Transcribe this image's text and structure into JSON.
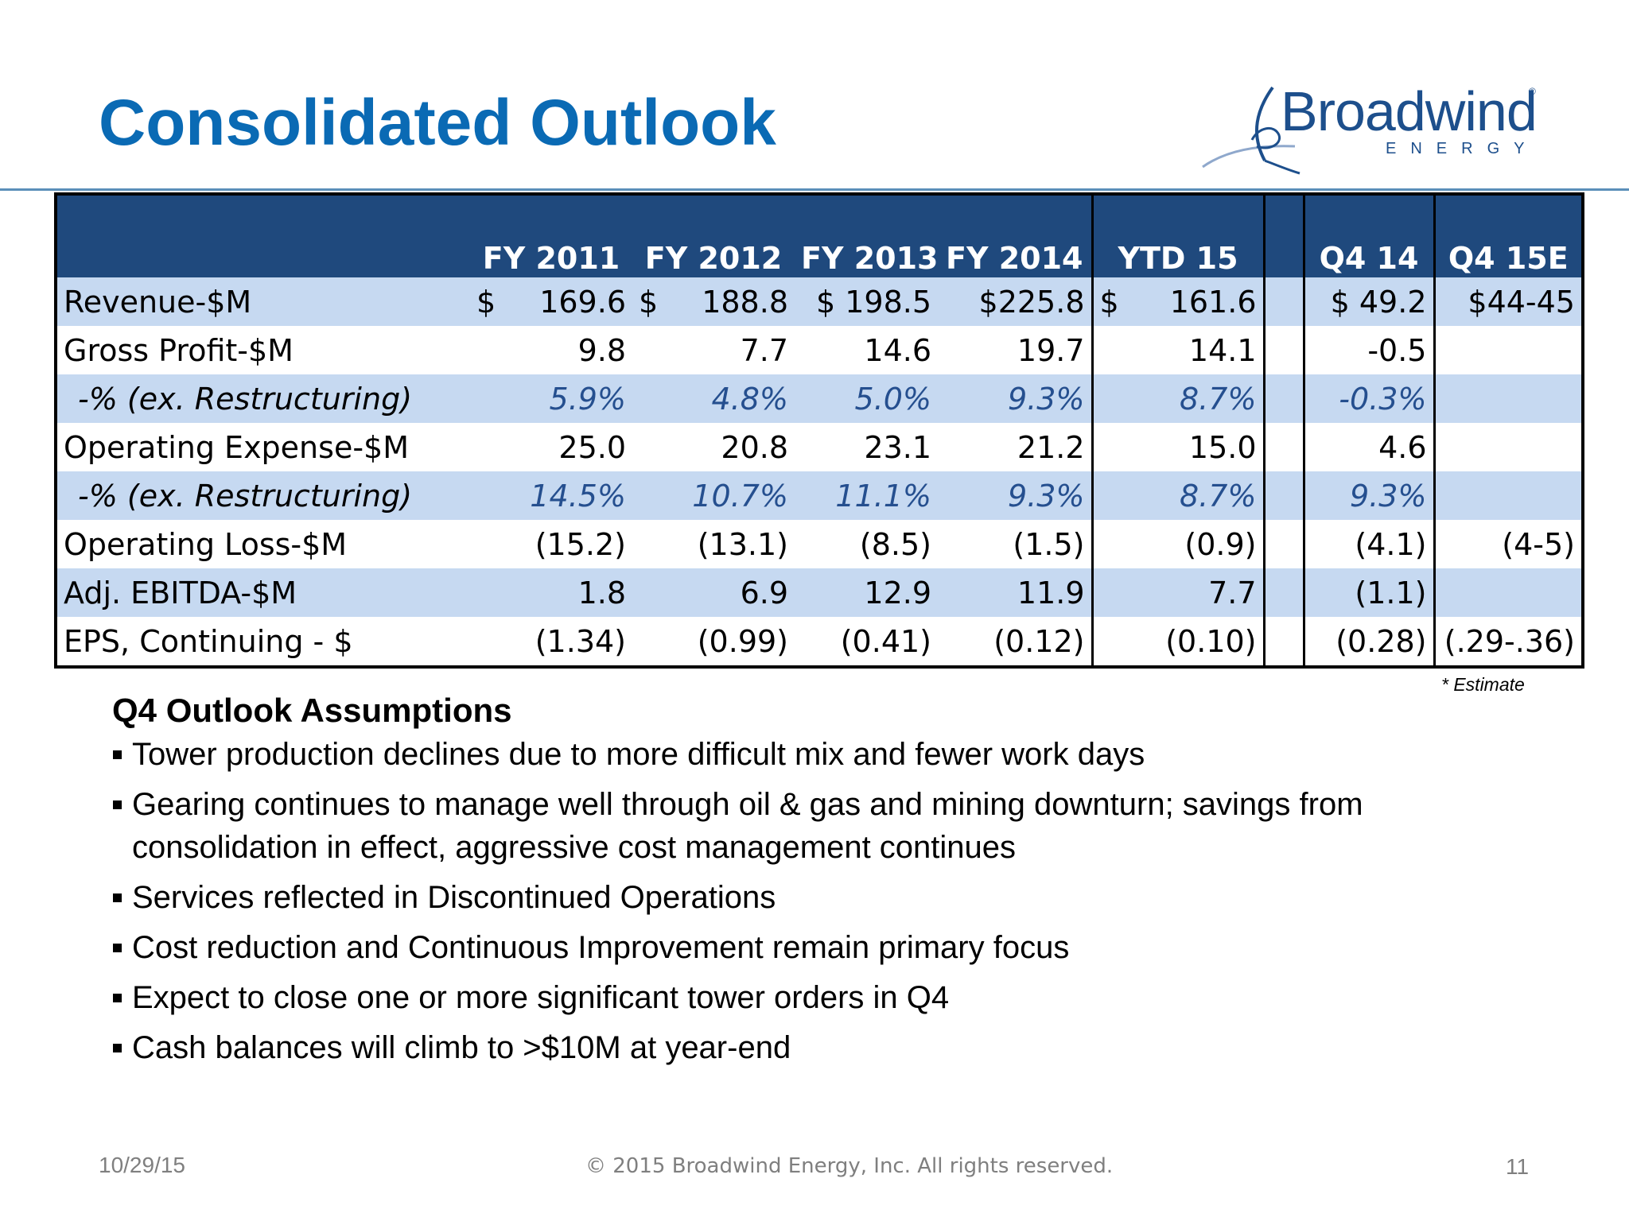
{
  "slide": {
    "title": "Consolidated Outlook",
    "logo": {
      "name": "Broadwind",
      "sub": "ENERGY",
      "reg_mark": "®"
    },
    "estimate_note": "* Estimate"
  },
  "table": {
    "headers": [
      "",
      "FY 2011",
      "FY 2012",
      "FY 2013",
      "FY 2014",
      "YTD 15",
      "",
      "Q4 14",
      "Q4 15E"
    ],
    "rows": [
      {
        "label": "Revenue-$M",
        "cells": [
          {
            "cur": "$",
            "num": "169.6"
          },
          {
            "cur": "$",
            "num": "188.8"
          },
          {
            "cur": "",
            "num": "$ 198.5"
          },
          {
            "cur": "",
            "num": "$225.8"
          },
          {
            "cur": "$",
            "num": "161.6"
          },
          {
            "cur": "",
            "num": ""
          },
          {
            "cur": "",
            "num": "$ 49.2"
          },
          {
            "cur": "",
            "num": "$44-45"
          }
        ]
      },
      {
        "label": "Gross Profit-$M",
        "cells": [
          {
            "cur": "",
            "num": "9.8"
          },
          {
            "cur": "",
            "num": "7.7"
          },
          {
            "cur": "",
            "num": "14.6"
          },
          {
            "cur": "",
            "num": "19.7"
          },
          {
            "cur": "",
            "num": "14.1"
          },
          {
            "cur": "",
            "num": ""
          },
          {
            "cur": "",
            "num": "-0.5"
          },
          {
            "cur": "",
            "num": ""
          }
        ]
      },
      {
        "label": "-% (ex. Restructuring)",
        "cells": [
          {
            "cur": "",
            "num": "5.9%"
          },
          {
            "cur": "",
            "num": "4.8%"
          },
          {
            "cur": "",
            "num": "5.0%"
          },
          {
            "cur": "",
            "num": "9.3%"
          },
          {
            "cur": "",
            "num": "8.7%"
          },
          {
            "cur": "",
            "num": ""
          },
          {
            "cur": "",
            "num": "-0.3%"
          },
          {
            "cur": "",
            "num": ""
          }
        ]
      },
      {
        "label": "Operating Expense-$M",
        "cells": [
          {
            "cur": "",
            "num": "25.0"
          },
          {
            "cur": "",
            "num": "20.8"
          },
          {
            "cur": "",
            "num": "23.1"
          },
          {
            "cur": "",
            "num": "21.2"
          },
          {
            "cur": "",
            "num": "15.0"
          },
          {
            "cur": "",
            "num": ""
          },
          {
            "cur": "",
            "num": "4.6"
          },
          {
            "cur": "",
            "num": ""
          }
        ]
      },
      {
        "label": "-% (ex. Restructuring)",
        "cells": [
          {
            "cur": "",
            "num": "14.5%"
          },
          {
            "cur": "",
            "num": "10.7%"
          },
          {
            "cur": "",
            "num": "11.1%"
          },
          {
            "cur": "",
            "num": "9.3%"
          },
          {
            "cur": "",
            "num": "8.7%"
          },
          {
            "cur": "",
            "num": ""
          },
          {
            "cur": "",
            "num": "9.3%"
          },
          {
            "cur": "",
            "num": ""
          }
        ]
      },
      {
        "label": "Operating Loss-$M",
        "cells": [
          {
            "cur": "",
            "num": "(15.2)"
          },
          {
            "cur": "",
            "num": "(13.1)"
          },
          {
            "cur": "",
            "num": "(8.5)"
          },
          {
            "cur": "",
            "num": "(1.5)"
          },
          {
            "cur": "",
            "num": "(0.9)"
          },
          {
            "cur": "",
            "num": ""
          },
          {
            "cur": "",
            "num": "(4.1)"
          },
          {
            "cur": "",
            "num": "(4-5)"
          }
        ]
      },
      {
        "label": "Adj. EBITDA-$M",
        "cells": [
          {
            "cur": "",
            "num": "1.8"
          },
          {
            "cur": "",
            "num": "6.9"
          },
          {
            "cur": "",
            "num": "12.9"
          },
          {
            "cur": "",
            "num": "11.9"
          },
          {
            "cur": "",
            "num": "7.7"
          },
          {
            "cur": "",
            "num": ""
          },
          {
            "cur": "",
            "num": "(1.1)"
          },
          {
            "cur": "",
            "num": ""
          }
        ]
      },
      {
        "label": "EPS, Continuing - $",
        "cells": [
          {
            "cur": "",
            "num": "(1.34)"
          },
          {
            "cur": "",
            "num": "(0.99)"
          },
          {
            "cur": "",
            "num": "(0.41)"
          },
          {
            "cur": "",
            "num": "(0.12)"
          },
          {
            "cur": "",
            "num": "(0.10)"
          },
          {
            "cur": "",
            "num": ""
          },
          {
            "cur": "",
            "num": "(0.28)"
          },
          {
            "cur": "",
            "num": "(.29-.36)"
          }
        ]
      }
    ]
  },
  "assumptions": {
    "title": "Q4 Outlook Assumptions",
    "items": [
      "Tower production declines due to more difficult mix and fewer work days",
      "Gearing continues to manage well through oil & gas and mining downturn; savings from consolidation in effect, aggressive cost management continues",
      "Services reflected in Discontinued Operations",
      "Cost reduction and Continuous Improvement remain primary focus",
      "Expect to close one or more significant tower orders in Q4",
      "Cash balances will climb to >$10M at year-end"
    ]
  },
  "footer": {
    "date": "10/29/15",
    "copyright": "© 2015 Broadwind Energy, Inc. All rights reserved.",
    "page": "11"
  },
  "colors": {
    "title": "#0a6ab4",
    "header_bg": "#1f497d",
    "band": "#c6d9f1",
    "pct_text": "#254f8f"
  }
}
